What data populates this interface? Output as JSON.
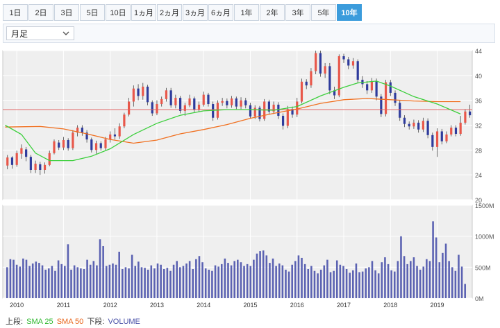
{
  "tabs": [
    "1日",
    "2日",
    "3日",
    "5日",
    "10日",
    "1ヵ月",
    "2ヵ月",
    "3ヵ月",
    "6ヵ月",
    "1年",
    "2年",
    "3年",
    "5年",
    "10年"
  ],
  "active_tab": "10年",
  "period_select": {
    "value": "月足"
  },
  "legend": {
    "upper_label": "上段:",
    "sma25_label": "SMA 25",
    "sma50_label": "SMA 50",
    "lower_label": "下段:",
    "volume_label": "VOLUME"
  },
  "colors": {
    "up": "#e8574a",
    "down": "#2e3b9c",
    "sma25": "#3ccf3c",
    "sma50": "#f07020",
    "volume": "#5b62b2",
    "ref_line": "#e06060",
    "active_tab": "#3b9cdc"
  },
  "chart_data": [
    {
      "type": "candlestick",
      "yaxis": {
        "ticks": [
          "20",
          "24",
          "28",
          "32",
          "36",
          "40",
          "44"
        ],
        "ylim": [
          20,
          44
        ],
        "position": "right"
      },
      "xaxis": {
        "ticks": [
          "2010",
          "2011",
          "2012",
          "2013",
          "2014",
          "2015",
          "2016",
          "2017",
          "2018",
          "2019"
        ]
      },
      "reference_line": 34.5,
      "sma25": [
        [
          2009.75,
          32
        ],
        [
          2010.1,
          30.5
        ],
        [
          2010.4,
          27.5
        ],
        [
          2010.7,
          26.3
        ],
        [
          2011.2,
          26.3
        ],
        [
          2011.6,
          27
        ],
        [
          2012.0,
          28.2
        ],
        [
          2012.5,
          30.5
        ],
        [
          2013.0,
          32.3
        ],
        [
          2013.5,
          33.6
        ],
        [
          2014.0,
          34.3
        ],
        [
          2014.5,
          34.5
        ],
        [
          2015.0,
          34.5
        ],
        [
          2015.5,
          34.4
        ],
        [
          2016.0,
          35
        ],
        [
          2016.5,
          36.7
        ],
        [
          2017.0,
          38.1
        ],
        [
          2017.3,
          38.8
        ],
        [
          2017.7,
          39.1
        ],
        [
          2018.0,
          38.3
        ],
        [
          2018.5,
          36.6
        ],
        [
          2019.0,
          35.4
        ],
        [
          2019.5,
          33.8
        ]
      ],
      "sma50": [
        [
          2009.75,
          31.7
        ],
        [
          2010.5,
          31.8
        ],
        [
          2011.0,
          31.4
        ],
        [
          2011.5,
          30.6
        ],
        [
          2012.0,
          29.7
        ],
        [
          2012.5,
          29.1
        ],
        [
          2013.0,
          29.6
        ],
        [
          2013.5,
          30.6
        ],
        [
          2014.0,
          31.3
        ],
        [
          2014.5,
          32.1
        ],
        [
          2015.0,
          33.1
        ],
        [
          2015.5,
          33.9
        ],
        [
          2016.0,
          34.6
        ],
        [
          2016.5,
          35.5
        ],
        [
          2017.0,
          36.1
        ],
        [
          2017.5,
          36.3
        ],
        [
          2018.0,
          36.1
        ],
        [
          2018.5,
          35.9
        ],
        [
          2019.0,
          35.8
        ],
        [
          2019.5,
          35.8
        ]
      ],
      "candles": [
        [
          2009.8,
          25.5,
          26.8,
          24.9,
          27.2
        ],
        [
          2009.9,
          26.8,
          25.6,
          25,
          27
        ],
        [
          2010.0,
          25.6,
          27.5,
          25.3,
          27.9
        ],
        [
          2010.1,
          27.4,
          28.3,
          26.6,
          28.9
        ],
        [
          2010.2,
          28.1,
          26.9,
          26.2,
          28.5
        ],
        [
          2010.3,
          26.9,
          24.8,
          24.3,
          27.2
        ],
        [
          2010.4,
          24.8,
          25.8,
          24.3,
          26.3
        ],
        [
          2010.5,
          25.7,
          24.8,
          24,
          26.1
        ],
        [
          2010.6,
          24.8,
          25.6,
          24.2,
          26
        ],
        [
          2010.7,
          25.6,
          27.5,
          25.4,
          27.9
        ],
        [
          2010.8,
          27.5,
          29.4,
          27.3,
          29.7
        ],
        [
          2010.9,
          29.2,
          28.4,
          28,
          29.6
        ],
        [
          2011.0,
          28.4,
          29.6,
          28,
          30.1
        ],
        [
          2011.1,
          29.6,
          28.3,
          27.9,
          29.9
        ],
        [
          2011.2,
          28.3,
          30.8,
          28,
          31.2
        ],
        [
          2011.3,
          30.8,
          31.6,
          30.2,
          32
        ],
        [
          2011.4,
          31.6,
          30.8,
          30.3,
          32
        ],
        [
          2011.5,
          30.8,
          29.7,
          29.2,
          31.2
        ],
        [
          2011.6,
          29.7,
          28,
          27.6,
          30
        ],
        [
          2011.7,
          28,
          29.1,
          27.4,
          29.5
        ],
        [
          2011.8,
          29.1,
          28.3,
          27.9,
          29.4
        ],
        [
          2011.9,
          28.3,
          29.7,
          28,
          30.1
        ],
        [
          2012.0,
          29.7,
          30.5,
          29.2,
          31
        ],
        [
          2012.1,
          30.5,
          30.2,
          29.7,
          31.5
        ],
        [
          2012.2,
          30.2,
          31.8,
          29.8,
          32.3
        ],
        [
          2012.3,
          31.8,
          33.7,
          31.5,
          34
        ],
        [
          2012.4,
          33.7,
          35.8,
          33.4,
          36.4
        ],
        [
          2012.5,
          35.8,
          37.9,
          35,
          38.4
        ],
        [
          2012.6,
          37.9,
          36.7,
          36,
          38.6
        ],
        [
          2012.7,
          36.7,
          38.2,
          36.1,
          38.8
        ],
        [
          2012.8,
          38.2,
          35.7,
          35.2,
          38.5
        ],
        [
          2012.9,
          35.7,
          33.9,
          33.5,
          36
        ],
        [
          2013.0,
          33.9,
          35.4,
          33.6,
          36
        ],
        [
          2013.1,
          35.4,
          36.2,
          35,
          36.6
        ],
        [
          2013.2,
          36.2,
          37.6,
          35.8,
          38
        ],
        [
          2013.3,
          37.6,
          35.2,
          34.8,
          38
        ],
        [
          2013.4,
          35.2,
          36.4,
          34.7,
          36.9
        ],
        [
          2013.5,
          36.4,
          34.3,
          33.9,
          36.7
        ],
        [
          2013.6,
          34.3,
          35.2,
          33.5,
          35.6
        ],
        [
          2013.7,
          35.2,
          36.3,
          34.9,
          36.9
        ],
        [
          2013.8,
          36.3,
          34.5,
          34.1,
          36.6
        ],
        [
          2013.9,
          34.5,
          35.3,
          34.1,
          35.8
        ],
        [
          2014.0,
          35.3,
          36.9,
          35,
          37.4
        ],
        [
          2014.1,
          36.9,
          35.4,
          35,
          37.2
        ],
        [
          2014.2,
          35.4,
          33.2,
          32.7,
          35.8
        ],
        [
          2014.3,
          33.2,
          35.6,
          32.9,
          36
        ],
        [
          2014.4,
          35.6,
          35.9,
          35.1,
          36.4
        ],
        [
          2014.5,
          35.9,
          35.2,
          34.7,
          36.3
        ],
        [
          2014.6,
          35.2,
          36.3,
          34.8,
          36.7
        ],
        [
          2014.7,
          36.3,
          35,
          34.6,
          36.6
        ],
        [
          2014.8,
          35,
          36,
          34.6,
          36.5
        ],
        [
          2014.9,
          36,
          35.2,
          34.7,
          36.4
        ],
        [
          2015.0,
          35.2,
          33.4,
          33,
          35.6
        ],
        [
          2015.1,
          33.4,
          34.8,
          33,
          35.2
        ],
        [
          2015.2,
          34.8,
          33,
          32.6,
          35.1
        ],
        [
          2015.3,
          33,
          35.8,
          32.7,
          36.2
        ],
        [
          2015.4,
          35.8,
          34.2,
          33.8,
          36.1
        ],
        [
          2015.5,
          34.2,
          35.3,
          33.8,
          35.8
        ],
        [
          2015.6,
          35.3,
          33.5,
          33,
          35.7
        ],
        [
          2015.7,
          33.5,
          31.9,
          31.3,
          33.9
        ],
        [
          2015.8,
          31.9,
          34.6,
          31.5,
          35.1
        ],
        [
          2015.9,
          34.6,
          33.7,
          33.2,
          35
        ],
        [
          2016.0,
          33.7,
          35.8,
          33.3,
          36.4
        ],
        [
          2016.1,
          35.8,
          39,
          35.5,
          39.5
        ],
        [
          2016.2,
          39,
          38.4,
          37.8,
          39.4
        ],
        [
          2016.3,
          38.4,
          40.7,
          38,
          41.2
        ],
        [
          2016.4,
          40.7,
          43.6,
          40.2,
          44
        ],
        [
          2016.5,
          43.6,
          40.3,
          39.8,
          44
        ],
        [
          2016.6,
          40.3,
          41.5,
          39.6,
          42
        ],
        [
          2016.7,
          41.5,
          37.6,
          37,
          42
        ],
        [
          2016.8,
          37.6,
          36.8,
          36.2,
          38.2
        ],
        [
          2016.9,
          36.8,
          43.1,
          36.5,
          43.4
        ],
        [
          2017.0,
          43.1,
          42.6,
          42,
          43.5
        ],
        [
          2017.1,
          42.6,
          41.6,
          41,
          43
        ],
        [
          2017.2,
          41.6,
          42.3,
          41.1,
          42.8
        ],
        [
          2017.3,
          42.3,
          39.3,
          38.8,
          42.6
        ],
        [
          2017.4,
          39.3,
          38.6,
          38,
          39.9
        ],
        [
          2017.5,
          38.6,
          37.6,
          37,
          39.1
        ],
        [
          2017.6,
          37.6,
          39.1,
          37.2,
          39.6
        ],
        [
          2017.7,
          39.1,
          36.6,
          36,
          39.5
        ],
        [
          2017.8,
          36.6,
          33.8,
          33.3,
          37
        ],
        [
          2017.9,
          33.8,
          38.9,
          33.4,
          39.3
        ],
        [
          2018.0,
          38.9,
          37.2,
          36.7,
          39.3
        ],
        [
          2018.1,
          37.2,
          35.6,
          35.1,
          37.6
        ],
        [
          2018.2,
          35.6,
          33.2,
          32.7,
          36
        ],
        [
          2018.3,
          33.2,
          32.2,
          31.7,
          33.6
        ],
        [
          2018.4,
          32.2,
          31.8,
          31.3,
          32.6
        ],
        [
          2018.5,
          31.8,
          32.4,
          31.4,
          32.9
        ],
        [
          2018.6,
          32.4,
          31.3,
          30.8,
          32.8
        ],
        [
          2018.7,
          31.3,
          32.7,
          30.9,
          33.2
        ],
        [
          2018.8,
          32.7,
          30.4,
          29.9,
          33.1
        ],
        [
          2018.9,
          30.4,
          28.5,
          27.9,
          30.8
        ],
        [
          2019.0,
          28.5,
          31,
          26.9,
          31.5
        ],
        [
          2019.1,
          31,
          29.4,
          28.9,
          31.4
        ],
        [
          2019.2,
          29.4,
          30.5,
          29.1,
          31
        ],
        [
          2019.3,
          30.5,
          31.6,
          30.2,
          32
        ],
        [
          2019.4,
          31.6,
          30.6,
          30.2,
          32
        ],
        [
          2019.5,
          30.6,
          32.4,
          30.3,
          33.5
        ],
        [
          2019.6,
          32.4,
          34.2,
          32.1,
          34.6
        ],
        [
          2019.7,
          34.2,
          33.6,
          33.2,
          35.3
        ]
      ]
    },
    {
      "type": "bar",
      "title": "VOLUME",
      "yaxis": {
        "ticks": [
          "0M",
          "500M",
          "1000M",
          "1500M"
        ],
        "ylim": [
          0,
          1500
        ],
        "position": "right"
      },
      "values": [
        500,
        630,
        620,
        540,
        510,
        640,
        620,
        520,
        560,
        590,
        570,
        530,
        460,
        480,
        520,
        440,
        610,
        550,
        520,
        870,
        460,
        530,
        500,
        480,
        470,
        620,
        540,
        600,
        530,
        950,
        840,
        520,
        540,
        560,
        540,
        750,
        470,
        500,
        480,
        700,
        520,
        590,
        500,
        490,
        460,
        530,
        480,
        560,
        540,
        470,
        490,
        440,
        540,
        600,
        500,
        520,
        560,
        600,
        470,
        630,
        680,
        580,
        480,
        460,
        440,
        530,
        510,
        550,
        640,
        570,
        530,
        600,
        620,
        580,
        520,
        550,
        520,
        620,
        720,
        760,
        770,
        690,
        570,
        640,
        520,
        560,
        530,
        460,
        430,
        540,
        600,
        690,
        650,
        550,
        470,
        520,
        440,
        400,
        460,
        530,
        620,
        420,
        440,
        610,
        540,
        520,
        470,
        410,
        450,
        560,
        420,
        430,
        480,
        500,
        600,
        450,
        400,
        580,
        660,
        550,
        450,
        430,
        600,
        1000,
        680,
        550,
        600,
        660,
        520,
        460,
        510,
        630,
        600,
        1240,
        980,
        580,
        730,
        880,
        600,
        500,
        440,
        700,
        510,
        230
      ]
    }
  ]
}
